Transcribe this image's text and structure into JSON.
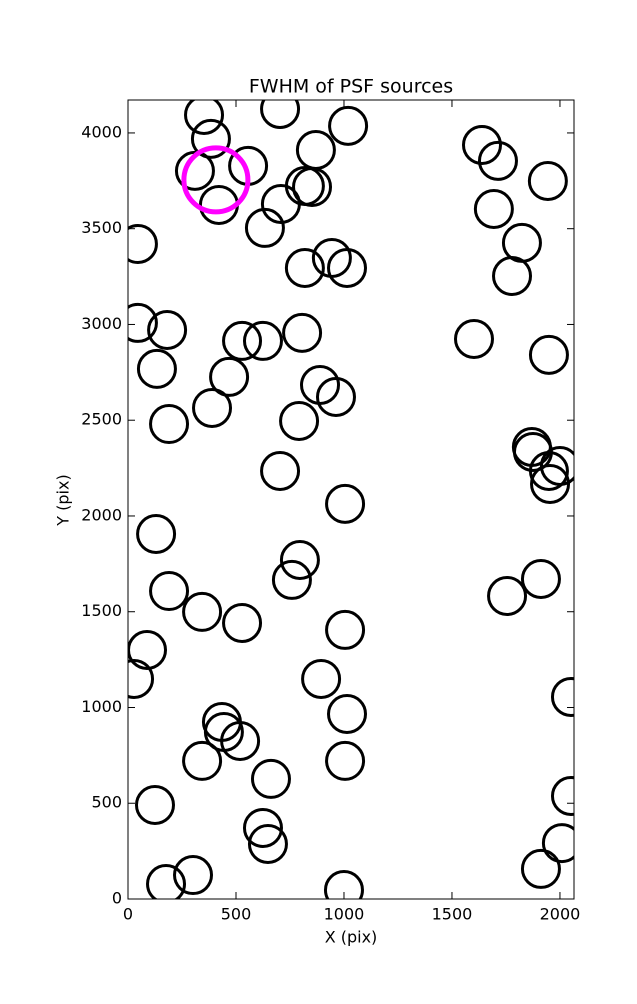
{
  "chart_data": {
    "type": "scatter",
    "title": "FWHM of PSF sources",
    "x_label": "X (pix)",
    "y_label": "Y (pix)",
    "xlim": [
      0,
      2065
    ],
    "ylim": [
      0,
      4172
    ],
    "xticks": [
      0,
      500,
      1000,
      1500,
      2000
    ],
    "yticks": [
      0,
      500,
      1000,
      1500,
      2000,
      2500,
      3000,
      3500,
      4000
    ],
    "grid": false,
    "series": [
      {
        "color": "#000000",
        "x": [
          352,
          384,
          704,
          1019,
          310,
          556,
          421,
          708,
          819,
          852,
          870,
          634,
          46,
          819,
          944,
          1014,
          46,
          181,
          528,
          625,
          806,
          134,
          468,
          389,
          889,
          963,
          792,
          190,
          704,
          1005,
          130,
          796,
          759,
          190,
          343,
          528,
          1005,
          88,
          28,
          894,
          1014,
          435,
          444,
          519,
          343,
          1005,
          662,
          125,
          625,
          648,
          301,
          176,
          1000,
          1639,
          1713,
          1944,
          1694,
          1824,
          1778,
          1602,
          1949,
          1870,
          1875,
          2000,
          1949,
          1954,
          1912,
          1755,
          2051,
          2051,
          2009,
          1912
        ],
        "y": [
          4094,
          3969,
          4125,
          4037,
          3802,
          3828,
          3624,
          3629,
          3723,
          3718,
          3911,
          3504,
          3420,
          3295,
          3347,
          3295,
          3008,
          2971,
          2914,
          2914,
          2956,
          2768,
          2726,
          2564,
          2684,
          2621,
          2496,
          2480,
          2235,
          2063,
          1906,
          1770,
          1666,
          1608,
          1499,
          1441,
          1405,
          1300,
          1149,
          1149,
          966,
          924,
          872,
          825,
          721,
          721,
          627,
          491,
          371,
          287,
          125,
          78,
          47,
          3937,
          3854,
          3749,
          3603,
          3426,
          3253,
          2924,
          2841,
          2360,
          2334,
          2261,
          2235,
          2167,
          1671,
          1582,
          1055,
          538,
          292,
          157
        ]
      },
      {
        "color": "#ff00ff",
        "x": [
          407
        ],
        "y": [
          3755
        ]
      }
    ]
  }
}
